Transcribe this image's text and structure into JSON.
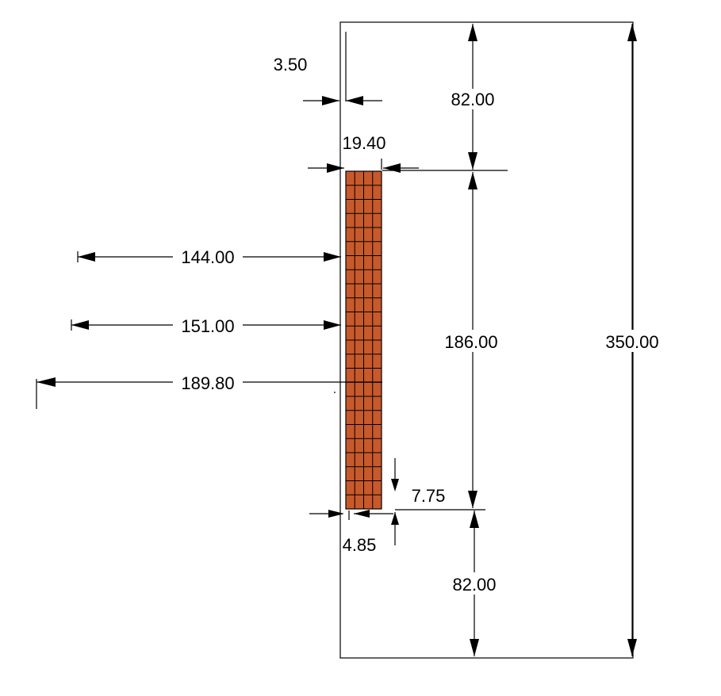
{
  "drawing": {
    "colors": {
      "lines": "#000000",
      "block_fill": "#c8592b",
      "block_grid": "#000000",
      "background": "#ffffff"
    },
    "block": {
      "columns": 4,
      "rows": 24
    },
    "dimensions": {
      "cover_side": "3.50",
      "block_width": "19.40",
      "top_cover": "82.00",
      "dist_144": "144.00",
      "dist_151": "151.00",
      "dist_189": "189.80",
      "block_height": "186.00",
      "total_height": "350.00",
      "offset_7_75": "7.75",
      "offset_4_85": "4.85",
      "bottom_cover": "82.00"
    }
  }
}
